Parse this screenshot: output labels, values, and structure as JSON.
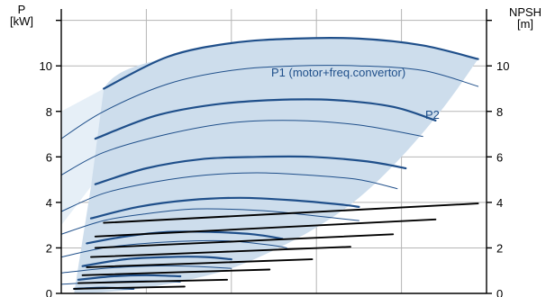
{
  "chart_data": {
    "type": "line",
    "left_axis": {
      "title_line1": "P",
      "title_line2": "[kW]",
      "ticks": [
        "0",
        "2",
        "4",
        "6",
        "8",
        "10"
      ],
      "range": [
        0,
        12.5
      ]
    },
    "right_axis": {
      "title_line1": "NPSH",
      "title_line2": "[m]",
      "ticks": [
        "0",
        "2",
        "4",
        "6",
        "8",
        "10"
      ],
      "range": [
        0,
        12.5
      ]
    },
    "x_range": [
      0,
      100
    ],
    "grid": true,
    "colors": {
      "power": "#1f4f8a",
      "envelope": "#cdddec",
      "envelope_light": "#e6eff7",
      "npsh": "#000000",
      "grid": "#b5b5b5"
    },
    "annotations": {
      "p1": "P1 (motor+freq.convertor)",
      "p2": "P2"
    },
    "series": [
      {
        "group": "power",
        "weight": "bold",
        "x": [
          10,
          25,
          40,
          55,
          70,
          85,
          98
        ],
        "y": [
          9.0,
          10.4,
          11.0,
          11.2,
          11.2,
          10.9,
          10.3
        ]
      },
      {
        "group": "power",
        "weight": "thin",
        "x": [
          0,
          10,
          25,
          40,
          55,
          70,
          85,
          98
        ],
        "y": [
          6.8,
          8.0,
          9.2,
          9.8,
          10.0,
          10.0,
          9.8,
          9.1
        ]
      },
      {
        "group": "power",
        "weight": "bold",
        "x": [
          8,
          22,
          36,
          50,
          64,
          78,
          88
        ],
        "y": [
          6.8,
          7.8,
          8.3,
          8.5,
          8.5,
          8.2,
          7.6
        ]
      },
      {
        "group": "power",
        "weight": "thin",
        "x": [
          0,
          10,
          25,
          40,
          55,
          70,
          85
        ],
        "y": [
          5.2,
          6.2,
          7.0,
          7.5,
          7.6,
          7.4,
          6.9
        ]
      },
      {
        "group": "power",
        "weight": "bold",
        "x": [
          8,
          20,
          33,
          46,
          59,
          72,
          81
        ],
        "y": [
          4.8,
          5.5,
          5.9,
          6.0,
          6.0,
          5.8,
          5.5
        ]
      },
      {
        "group": "power",
        "weight": "thin",
        "x": [
          0,
          10,
          22,
          34,
          46,
          58,
          70,
          79
        ],
        "y": [
          3.6,
          4.4,
          4.9,
          5.2,
          5.3,
          5.2,
          5.0,
          4.6
        ]
      },
      {
        "group": "power",
        "weight": "bold",
        "x": [
          7,
          18,
          30,
          42,
          54,
          66,
          70
        ],
        "y": [
          3.3,
          3.8,
          4.1,
          4.2,
          4.1,
          3.9,
          3.8
        ]
      },
      {
        "group": "power",
        "weight": "thin",
        "x": [
          0,
          10,
          20,
          30,
          40,
          50,
          60,
          70
        ],
        "y": [
          2.6,
          3.2,
          3.5,
          3.7,
          3.7,
          3.6,
          3.4,
          3.2
        ]
      },
      {
        "group": "power",
        "weight": "bold",
        "x": [
          6,
          15,
          25,
          35,
          45,
          52
        ],
        "y": [
          2.2,
          2.5,
          2.7,
          2.7,
          2.6,
          2.4
        ]
      },
      {
        "group": "power",
        "weight": "thin",
        "x": [
          0,
          10,
          20,
          30,
          40,
          50,
          53
        ],
        "y": [
          1.6,
          2.0,
          2.2,
          2.3,
          2.3,
          2.1,
          2.0
        ]
      },
      {
        "group": "power",
        "weight": "bold",
        "x": [
          5,
          15,
          25,
          34,
          40
        ],
        "y": [
          1.2,
          1.5,
          1.6,
          1.6,
          1.5
        ]
      },
      {
        "group": "power",
        "weight": "thin",
        "x": [
          0,
          10,
          20,
          30,
          40
        ],
        "y": [
          0.9,
          1.1,
          1.2,
          1.2,
          1.1
        ]
      },
      {
        "group": "power",
        "weight": "bold",
        "x": [
          4,
          12,
          20,
          28
        ],
        "y": [
          0.6,
          0.75,
          0.8,
          0.75
        ]
      },
      {
        "group": "power",
        "weight": "thin",
        "x": [
          0,
          10,
          20,
          28
        ],
        "y": [
          0.4,
          0.5,
          0.55,
          0.5
        ]
      },
      {
        "group": "power",
        "weight": "bold",
        "x": [
          3,
          10,
          17
        ],
        "y": [
          0.2,
          0.25,
          0.2
        ]
      },
      {
        "group": "npsh",
        "x": [
          10,
          98
        ],
        "y": [
          3.1,
          3.95
        ]
      },
      {
        "group": "npsh",
        "x": [
          8,
          88
        ],
        "y": [
          2.5,
          3.25
        ]
      },
      {
        "group": "npsh",
        "x": [
          8,
          78
        ],
        "y": [
          2.0,
          2.6
        ]
      },
      {
        "group": "npsh",
        "x": [
          7,
          68
        ],
        "y": [
          1.6,
          2.05
        ]
      },
      {
        "group": "npsh",
        "x": [
          6,
          59
        ],
        "y": [
          1.15,
          1.5
        ]
      },
      {
        "group": "npsh",
        "x": [
          5,
          49
        ],
        "y": [
          0.8,
          1.05
        ]
      },
      {
        "group": "npsh",
        "x": [
          4,
          39
        ],
        "y": [
          0.45,
          0.6
        ]
      },
      {
        "group": "npsh",
        "x": [
          3,
          29
        ],
        "y": [
          0.2,
          0.3
        ]
      }
    ],
    "envelope": {
      "upper_x": [
        7,
        10,
        25,
        40,
        55,
        70,
        85,
        98
      ],
      "upper_y": [
        4.7,
        9.0,
        10.4,
        11.0,
        11.2,
        11.2,
        10.9,
        10.3
      ],
      "lower_x": [
        98,
        90,
        80,
        70,
        60,
        50,
        40,
        30,
        20,
        10,
        3
      ],
      "lower_y": [
        10.3,
        8.2,
        6.0,
        4.2,
        2.9,
        1.9,
        1.1,
        0.6,
        0.25,
        0.05,
        0.0
      ]
    },
    "envelope_light": {
      "x": [
        0,
        10,
        7,
        0
      ],
      "y": [
        8.0,
        9.0,
        4.7,
        3.0
      ]
    }
  }
}
